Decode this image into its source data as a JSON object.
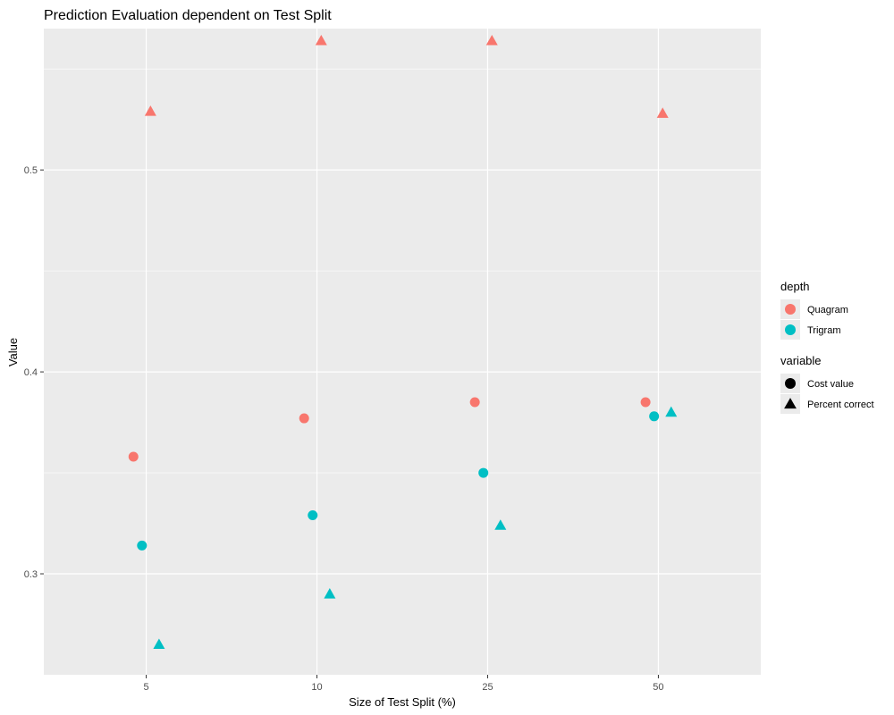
{
  "chart_data": {
    "type": "scatter",
    "title": "Prediction Evaluation dependent on Test Split",
    "xlabel": "Size of Test Split (%)",
    "ylabel": "Value",
    "categories": [
      "5",
      "10",
      "25",
      "50"
    ],
    "ylim": [
      0.25,
      0.57
    ],
    "yticks": [
      "0.3",
      "0.4",
      "0.5"
    ],
    "ytick_values": [
      0.3,
      0.4,
      0.5
    ],
    "grid": true,
    "legend_position": "right",
    "colors": {
      "Quagram": "#f8766d",
      "Trigram": "#00bfc4"
    },
    "legends": [
      {
        "title": "depth",
        "kind": "color",
        "entries": [
          {
            "label": "Quagram",
            "key": "Quagram"
          },
          {
            "label": "Trigram",
            "key": "Trigram"
          }
        ]
      },
      {
        "title": "variable",
        "kind": "shape",
        "entries": [
          {
            "label": "Cost value",
            "shape": "circle"
          },
          {
            "label": "Percent correct",
            "shape": "triangle"
          }
        ]
      }
    ],
    "series": [
      {
        "depth": "Quagram",
        "variable": "Cost value",
        "shape": "circle",
        "points": [
          {
            "x": "5",
            "y": 0.358
          },
          {
            "x": "10",
            "y": 0.377
          },
          {
            "x": "25",
            "y": 0.385
          },
          {
            "x": "50",
            "y": 0.385
          }
        ]
      },
      {
        "depth": "Trigram",
        "variable": "Cost value",
        "shape": "circle",
        "points": [
          {
            "x": "5",
            "y": 0.314
          },
          {
            "x": "10",
            "y": 0.329
          },
          {
            "x": "25",
            "y": 0.35
          },
          {
            "x": "50",
            "y": 0.378
          }
        ]
      },
      {
        "depth": "Quagram",
        "variable": "Percent correct",
        "shape": "triangle",
        "points": [
          {
            "x": "5",
            "y": 0.529
          },
          {
            "x": "10",
            "y": 0.564
          },
          {
            "x": "25",
            "y": 0.564
          },
          {
            "x": "50",
            "y": 0.528
          }
        ]
      },
      {
        "depth": "Trigram",
        "variable": "Percent correct",
        "shape": "triangle",
        "points": [
          {
            "x": "5",
            "y": 0.265
          },
          {
            "x": "10",
            "y": 0.29
          },
          {
            "x": "25",
            "y": 0.324
          },
          {
            "x": "50",
            "y": 0.38
          }
        ]
      }
    ]
  }
}
